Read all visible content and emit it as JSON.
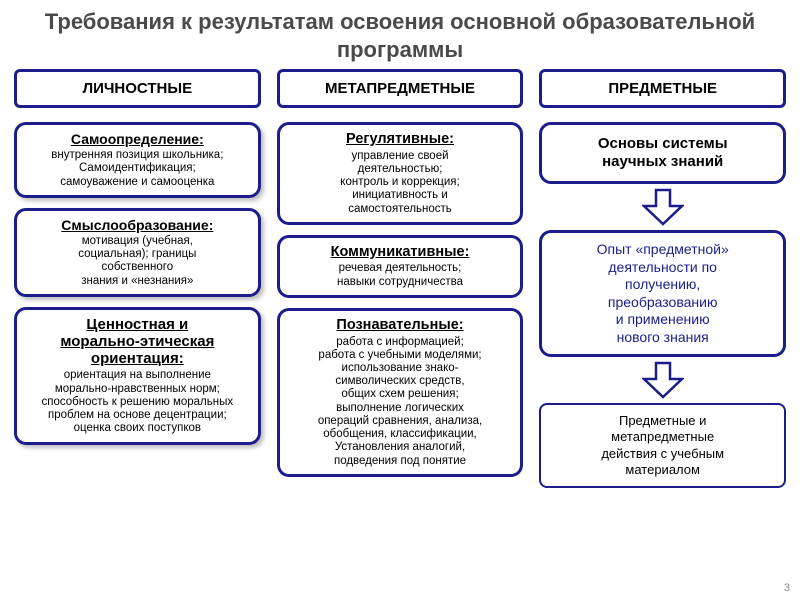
{
  "title": "Требования к результатам освоения основной образовательной  программы",
  "colors": {
    "border": "#1b1e8a",
    "title": "#4a4a4a",
    "link": "#1b1e8a",
    "bg": "#ffffff"
  },
  "columns": {
    "personal": {
      "header": "ЛИЧНОСТНЫЕ",
      "boxes": [
        {
          "title": "Самоопределение:",
          "body": "внутренняя позиция школьника;\nСамоидентификация;\nсамоуважение и самооценка"
        },
        {
          "title": "Смыслообразование:",
          "body": "мотивация (учебная,\nсоциальная); границы\nсобственного\nзнания и «незнания»"
        },
        {
          "title": "Ценностная и\nморально-этическая\nориентация:",
          "body": "ориентация на выполнение\nморально-нравственных норм;\nспособность к решению моральных\nпроблем на основе децентрации;\nоценка своих поступков"
        }
      ]
    },
    "meta": {
      "header": "МЕТАПРЕДМЕТНЫЕ",
      "boxes": [
        {
          "title": "Регулятивные:",
          "body": "управление своей\nдеятельностью;\nконтроль и коррекция;\nинициативность и\nсамостоятельность"
        },
        {
          "title": "Коммуникативные:",
          "body": "речевая деятельность;\nнавыки сотрудничества"
        },
        {
          "title": "Познавательные:",
          "body": "работа с информацией;\nработа с учебными моделями;\nиспользование знако-\nсимволических средств,\nобщих схем решения;\nвыполнение логических\nопераций сравнения,  анализа,\nобобщения, классификации,\nУстановления аналогий,\nподведения под понятие"
        }
      ]
    },
    "subject": {
      "header": "ПРЕДМЕТНЫЕ",
      "box1": "Основы системы\nнаучных знаний",
      "box2": "Опыт «предметной»\nдеятельности по\nполучению,\nпреобразованию\nи применению\nнового знания",
      "box3": "Предметные и\nметапредметные\nдействия с учебным\nматериалом"
    }
  },
  "arrow": {
    "stroke": "#1b1e8a",
    "fill": "#ffffff",
    "width": 42,
    "height": 38
  },
  "pagenum": "3"
}
